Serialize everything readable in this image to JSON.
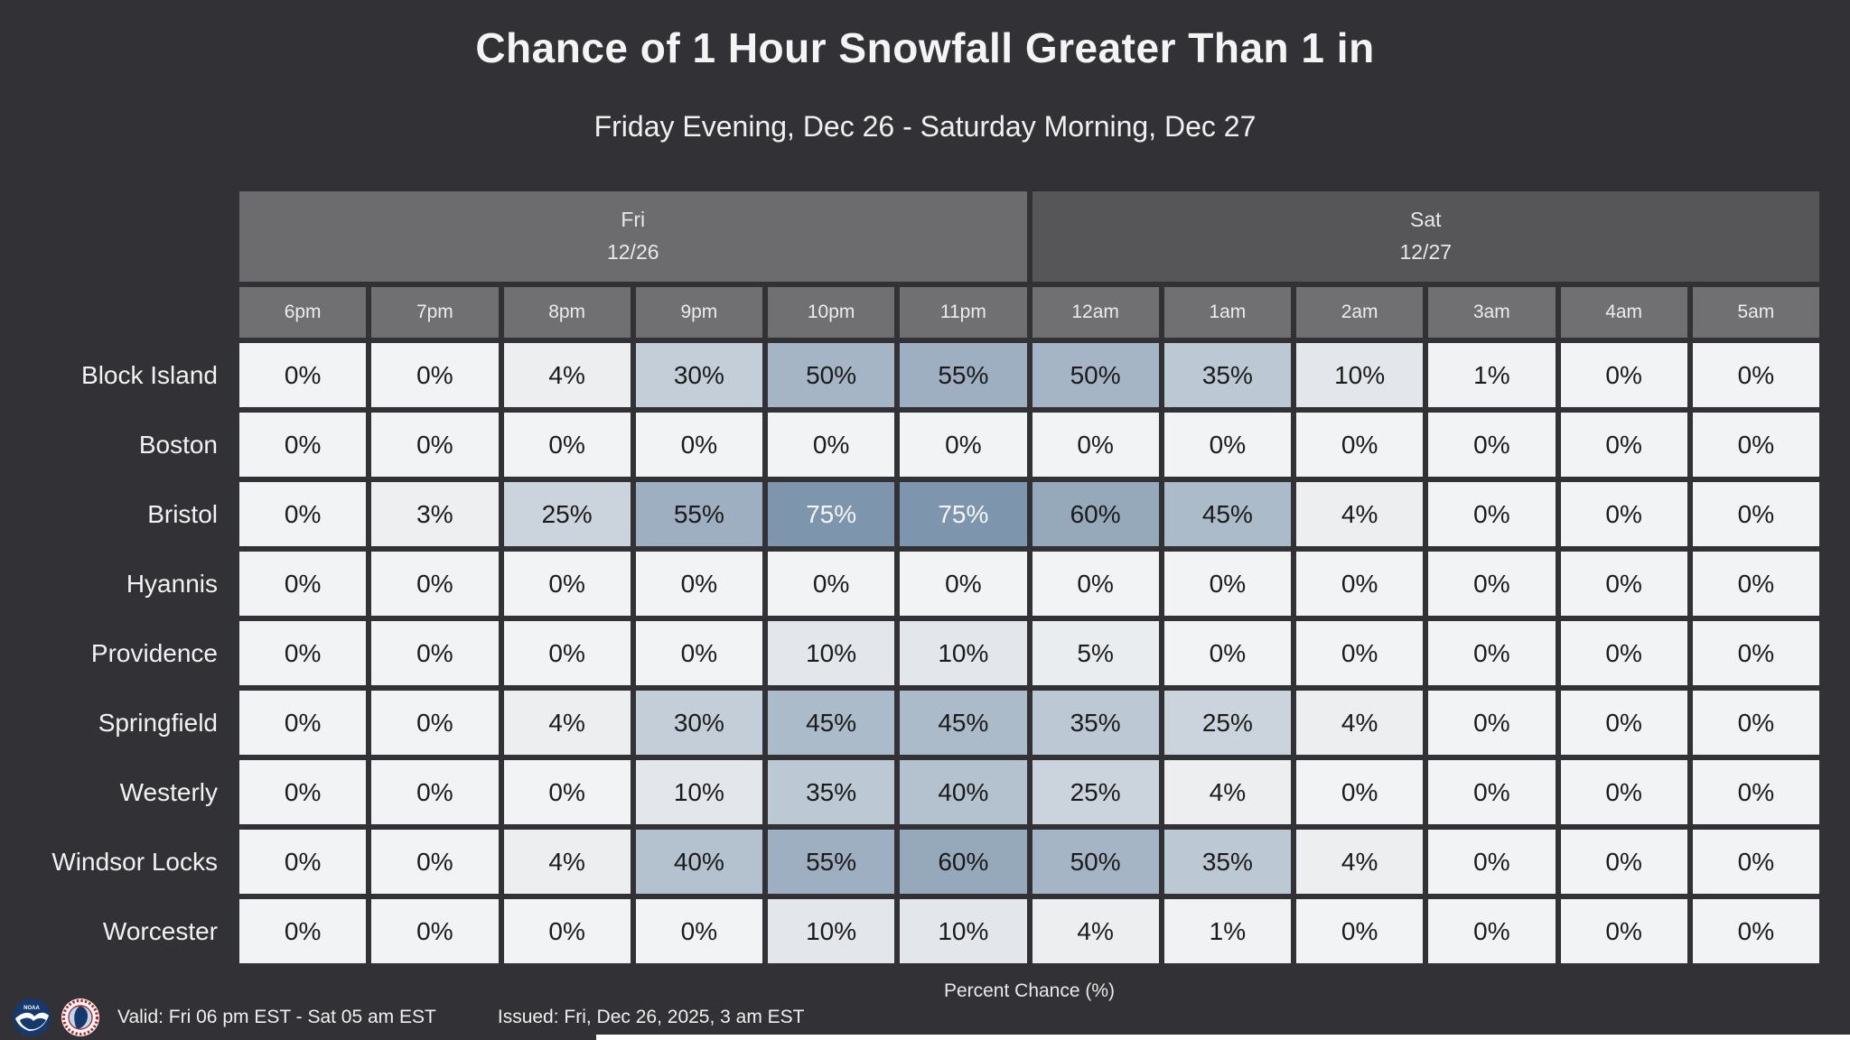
{
  "title": "Chance of 1 Hour Snowfall Greater Than 1 in",
  "subtitle": "Friday Evening, Dec 26 - Saturday Morning, Dec 27",
  "footer": {
    "scale_label": "Percent Chance (%)",
    "valid": "Valid: Fri 06 pm EST - Sat 05 am EST",
    "issued": "Issued: Fri, Dec 26, 2025, 3 am EST",
    "logos": [
      "noaa-logo",
      "nws-logo"
    ]
  },
  "colors": {
    "background": "#323236",
    "fri_header_bg": "#6c6c6f",
    "sat_header_bg": "#565659",
    "hour_header_bg": "#707073",
    "scale_low": "#f2f3f4",
    "scale_high": "#577795",
    "cell_text_dark": "#1b1b1b",
    "cell_text_light": "#f5f5f5"
  },
  "chart_data": {
    "type": "heatmap",
    "title": "Chance of 1 Hour Snowfall Greater Than 1 in",
    "subtitle": "Friday Evening, Dec 26 - Saturday Morning, Dec 27",
    "unit": "Percent Chance (%)",
    "value_range": [
      0,
      100
    ],
    "legend_position": "bottom-center",
    "day_groups": [
      {
        "label": "Fri",
        "date": "12/26",
        "hour_count": 6
      },
      {
        "label": "Sat",
        "date": "12/27",
        "hour_count": 6
      }
    ],
    "hours": [
      "6pm",
      "7pm",
      "8pm",
      "9pm",
      "10pm",
      "11pm",
      "12am",
      "1am",
      "2am",
      "3am",
      "4am",
      "5am"
    ],
    "locations": [
      "Block Island",
      "Boston",
      "Bristol",
      "Hyannis",
      "Providence",
      "Springfield",
      "Westerly",
      "Windsor Locks",
      "Worcester"
    ],
    "values_percent": [
      [
        0,
        0,
        4,
        30,
        50,
        55,
        50,
        35,
        10,
        1,
        0,
        0
      ],
      [
        0,
        0,
        0,
        0,
        0,
        0,
        0,
        0,
        0,
        0,
        0,
        0
      ],
      [
        0,
        3,
        25,
        55,
        75,
        75,
        60,
        45,
        4,
        0,
        0,
        0
      ],
      [
        0,
        0,
        0,
        0,
        0,
        0,
        0,
        0,
        0,
        0,
        0,
        0
      ],
      [
        0,
        0,
        0,
        0,
        10,
        10,
        5,
        0,
        0,
        0,
        0,
        0
      ],
      [
        0,
        0,
        4,
        30,
        45,
        45,
        35,
        25,
        4,
        0,
        0,
        0
      ],
      [
        0,
        0,
        0,
        10,
        35,
        40,
        25,
        4,
        0,
        0,
        0,
        0
      ],
      [
        0,
        0,
        4,
        40,
        55,
        60,
        50,
        35,
        4,
        0,
        0,
        0
      ],
      [
        0,
        0,
        0,
        0,
        10,
        10,
        4,
        1,
        0,
        0,
        0,
        0
      ]
    ]
  }
}
